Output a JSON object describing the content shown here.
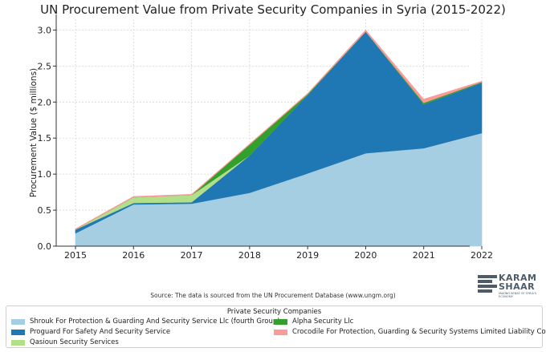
{
  "chart_data": {
    "type": "area",
    "stacked": true,
    "title": "UN Procurement Value from Private Security Companies in Syria (2015-2022)",
    "xlabel": "",
    "ylabel": "Procurement Value ($ millions)",
    "x": [
      "2015",
      "2016",
      "2017",
      "2018",
      "2019",
      "2020",
      "2021",
      "2022"
    ],
    "ylim": [
      0,
      3.15
    ],
    "yticks": [
      "0.0",
      "0.5",
      "1.0",
      "1.5",
      "2.0",
      "2.5",
      "3.0"
    ],
    "grid": true,
    "series": [
      {
        "name": "Shrouk For Protection & Guarding And Security Service Llc (fourth Group)",
        "color": "#a6cee3",
        "values": [
          0.18,
          0.58,
          0.59,
          0.74,
          1.01,
          1.29,
          1.36,
          1.57
        ]
      },
      {
        "name": "Proguard For Safety And Security Service",
        "color": "#1f78b4",
        "values": [
          0.05,
          0.02,
          0.02,
          0.52,
          1.09,
          1.69,
          0.61,
          0.7
        ]
      },
      {
        "name": "Qasioun Security Services",
        "color": "#b2df8a",
        "values": [
          0.0,
          0.08,
          0.1,
          0.0,
          0.0,
          0.0,
          0.0,
          0.0
        ]
      },
      {
        "name": "Alpha Security Llc",
        "color": "#33a02c",
        "values": [
          0.0,
          0.0,
          0.0,
          0.15,
          0.01,
          0.0,
          0.02,
          0.01
        ]
      },
      {
        "name": "Crocodile For Protection, Guarding & Security Systems Limited Liability Com.",
        "color": "#fb9a99",
        "values": [
          0.01,
          0.01,
          0.01,
          0.01,
          0.01,
          0.02,
          0.05,
          0.01
        ]
      }
    ],
    "legend": {
      "title": "Private Security Companies",
      "placement": "bottom"
    }
  },
  "source": "Source: The data is sourced from the UN Procurement Database (www.ungm.org)",
  "logo": {
    "line1": "KARAM",
    "line2": "SHAAR",
    "tagline": "MAKING SENSE OF SYRIA'S ECONOMY"
  }
}
